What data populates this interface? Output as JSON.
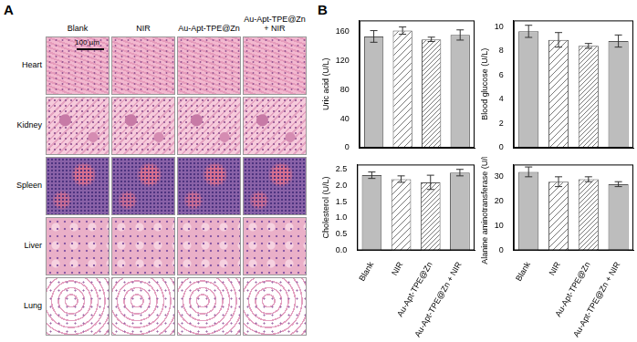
{
  "panel_a": {
    "label": "A",
    "columns": [
      "Blank",
      "NIR",
      "Au-Apt-TPE@Zn",
      "Au-Apt-TPE@Zn + NIR"
    ],
    "rows": [
      "Heart",
      "Kidney",
      "Spleen",
      "Liver",
      "Lung"
    ],
    "scale_bar": "100 µm"
  },
  "panel_b": {
    "label": "B"
  },
  "chart_data": [
    {
      "type": "bar",
      "y_label": "Uric acid (U/L)",
      "categories": [
        "Blank",
        "NIR",
        "Au-Apt-TPE@Zn",
        "Au-Apt-TPE@Zn + NIR"
      ],
      "values": [
        153,
        161,
        149,
        155
      ],
      "errors": [
        8,
        5,
        3,
        7
      ],
      "colors": [
        "#bdbdbd",
        "#d9d9d9",
        "#d9d9d9",
        "#bdbdbd"
      ],
      "ylim": [
        0,
        175
      ],
      "yticks": [
        0,
        40,
        80,
        120,
        160
      ],
      "tick_labels": "y"
    },
    {
      "type": "bar",
      "y_label": "Blood glucose (U/L)",
      "categories": [
        "Blank",
        "NIR",
        "Au-Apt-TPE@Zn",
        "Au-Apt-TPE@Zn + NIR"
      ],
      "values": [
        9.6,
        8.9,
        8.4,
        8.8
      ],
      "errors": [
        0.5,
        0.6,
        0.2,
        0.5
      ],
      "colors": [
        "#bdbdbd",
        "#d9d9d9",
        "#d9d9d9",
        "#bdbdbd"
      ],
      "ylim": [
        0,
        10.5
      ],
      "yticks": [
        0,
        2,
        4,
        6,
        8,
        10
      ],
      "tick_labels": "y"
    },
    {
      "type": "bar",
      "y_label": "Cholesterol (U/L)",
      "categories": [
        "Blank",
        "NIR",
        "Au-Apt-TPE@Zn",
        "Au-Apt-TPE@Zn + NIR"
      ],
      "values": [
        2.32,
        2.2,
        2.1,
        2.4
      ],
      "errors": [
        0.1,
        0.1,
        0.22,
        0.1
      ],
      "colors": [
        "#bdbdbd",
        "#d9d9d9",
        "#d9d9d9",
        "#bdbdbd"
      ],
      "ylim": [
        0,
        2.65
      ],
      "yticks": [
        {
          "value": 0,
          "label": "0.0"
        },
        0.5,
        {
          "value": 1,
          "label": "1.0"
        },
        1.5,
        {
          "value": 2,
          "label": "2.0"
        },
        2.5
      ]
    },
    {
      "type": "bar",
      "y_label": "Alanine aminotransferase (U/L)",
      "categories": [
        "Blank",
        "NIR",
        "Au-Apt-TPE@Zn",
        "Au-Apt-TPE@Zn + NIR"
      ],
      "values": [
        32,
        28,
        29,
        27
      ],
      "errors": [
        2,
        2,
        1,
        1
      ],
      "colors": [
        "#bdbdbd",
        "#d9d9d9",
        "#d9d9d9",
        "#bdbdbd"
      ],
      "ylim": [
        0,
        35
      ],
      "yticks": [
        0,
        10,
        20,
        30
      ]
    }
  ]
}
